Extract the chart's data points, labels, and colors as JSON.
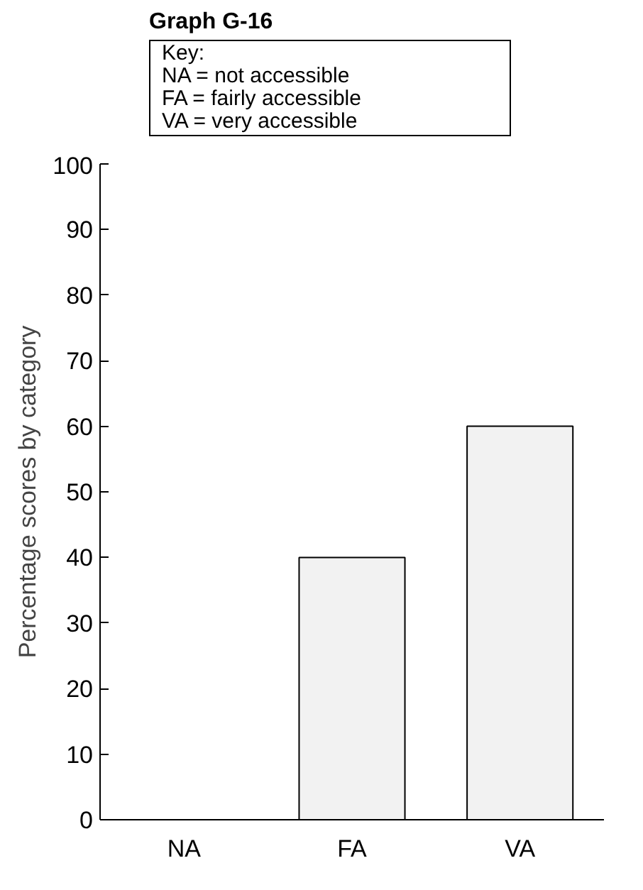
{
  "chart_data": {
    "type": "bar",
    "title": "Graph G-16",
    "annotations": [
      "Key:",
      "NA = not accessible",
      "FA = fairly accessible",
      "VA = very accessible"
    ],
    "ylabel": "Percentage scores by category",
    "categories": [
      "NA",
      "FA",
      "VA"
    ],
    "values": [
      0,
      40,
      60
    ],
    "color": "#f2f2f2",
    "ylim": [
      0,
      100
    ],
    "yticks": [
      0,
      10,
      20,
      30,
      40,
      50,
      60,
      70,
      80,
      90,
      100
    ],
    "grid": false
  }
}
